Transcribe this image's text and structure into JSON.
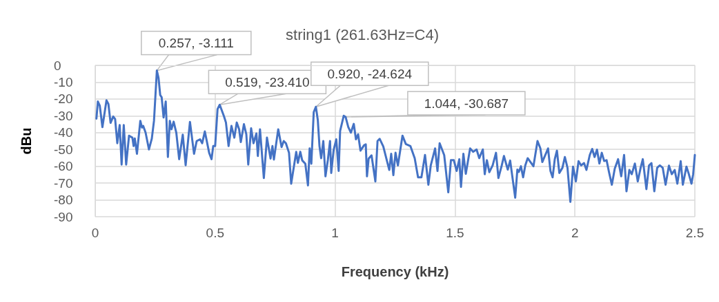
{
  "chart_data": {
    "type": "line",
    "title": "string1 (261.63Hz=C4)",
    "xlabel": "Frequency (kHz)",
    "ylabel": "dBu",
    "xlim": [
      0,
      2.5
    ],
    "xticks": [
      0,
      0.5,
      1,
      1.5,
      2,
      2.5
    ],
    "ylim": [
      -90,
      0
    ],
    "yticks": [
      -90,
      -80,
      -70,
      -60,
      -50,
      -40,
      -30,
      -20,
      -10,
      0
    ],
    "grid": true,
    "marker": "none",
    "line_style": "solid",
    "x": [
      0.005,
      0.011,
      0.019,
      0.03,
      0.047,
      0.055,
      0.064,
      0.075,
      0.083,
      0.092,
      0.102,
      0.11,
      0.119,
      0.129,
      0.141,
      0.155,
      0.16,
      0.165,
      0.174,
      0.188,
      0.195,
      0.2,
      0.21,
      0.224,
      0.236,
      0.245,
      0.257,
      0.264,
      0.271,
      0.277,
      0.285,
      0.294,
      0.303,
      0.311,
      0.318,
      0.327,
      0.338,
      0.35,
      0.365,
      0.377,
      0.395,
      0.412,
      0.423,
      0.437,
      0.446,
      0.457,
      0.475,
      0.485,
      0.492,
      0.5,
      0.51,
      0.519,
      0.537,
      0.545,
      0.556,
      0.568,
      0.58,
      0.59,
      0.6,
      0.607,
      0.62,
      0.63,
      0.638,
      0.65,
      0.66,
      0.672,
      0.678,
      0.687,
      0.703,
      0.716,
      0.731,
      0.739,
      0.745,
      0.763,
      0.777,
      0.786,
      0.795,
      0.808,
      0.817,
      0.838,
      0.845,
      0.855,
      0.863,
      0.876,
      0.887,
      0.894,
      0.901,
      0.911,
      0.92,
      0.928,
      0.935,
      0.942,
      0.951,
      0.96,
      0.97,
      0.979,
      0.984,
      0.994,
      1.005,
      1.015,
      1.021,
      1.036,
      1.044,
      1.055,
      1.066,
      1.078,
      1.087,
      1.096,
      1.106,
      1.121,
      1.128,
      1.133,
      1.14,
      1.152,
      1.168,
      1.177,
      1.186,
      1.201,
      1.226,
      1.234,
      1.243,
      1.252,
      1.262,
      1.281,
      1.295,
      1.314,
      1.332,
      1.346,
      1.36,
      1.375,
      1.389,
      1.399,
      1.417,
      1.427,
      1.436,
      1.455,
      1.472,
      1.483,
      1.495,
      1.507,
      1.518,
      1.525,
      1.535,
      1.545,
      1.563,
      1.576,
      1.59,
      1.601,
      1.616,
      1.624,
      1.633,
      1.643,
      1.657,
      1.671,
      1.681,
      1.695,
      1.704,
      1.72,
      1.73,
      1.751,
      1.76,
      1.766,
      1.775,
      1.784,
      1.793,
      1.803,
      1.827,
      1.844,
      1.856,
      1.864,
      1.888,
      1.898,
      1.907,
      1.916,
      1.925,
      1.935,
      1.948,
      1.958,
      1.969,
      1.981,
      1.992,
      2.004,
      2.015,
      2.026,
      2.038,
      2.048,
      2.062,
      2.072,
      2.082,
      2.092,
      2.102,
      2.112,
      2.122,
      2.132,
      2.142,
      2.154,
      2.166,
      2.18,
      2.193,
      2.205,
      2.215,
      2.227,
      2.237,
      2.25,
      2.262,
      2.274,
      2.283,
      2.298,
      2.309,
      2.319,
      2.331,
      2.343,
      2.354,
      2.366,
      2.378,
      2.392,
      2.404,
      2.416,
      2.427,
      2.441,
      2.45,
      2.465,
      2.475,
      2.486,
      2.493,
      2.5
    ],
    "series": [
      {
        "color": "#4472c4",
        "values": [
          -31.7,
          -21.5,
          -24,
          -36.7,
          -20.8,
          -23,
          -34.2,
          -30.4,
          -32,
          -46.3,
          -35.5,
          -59,
          -35.5,
          -59,
          -41.8,
          -43,
          -48,
          -43.5,
          -52.6,
          -33,
          -37,
          -36,
          -40,
          -50,
          -43.5,
          -33,
          -3.111,
          -7.5,
          -17.7,
          -19,
          -31,
          -21.5,
          -54.5,
          -33,
          -38,
          -33.5,
          -40,
          -55.8,
          -41.2,
          -59.4,
          -33.6,
          -52.6,
          -45,
          -44,
          -46.3,
          -39.3,
          -52,
          -55.8,
          -48,
          -48,
          -26,
          -23.41,
          -30.4,
          -34,
          -48,
          -36,
          -43,
          -34,
          -38,
          -45.6,
          -35,
          -41,
          -59,
          -37.4,
          -46.3,
          -40.5,
          -53.9,
          -38,
          -67,
          -43,
          -55.4,
          -48,
          -56,
          -38,
          -48.6,
          -45,
          -46.3,
          -52,
          -70.4,
          -51.4,
          -58,
          -51.4,
          -56.5,
          -58.5,
          -71.4,
          -49.4,
          -58.5,
          -27.8,
          -24.624,
          -32.5,
          -48,
          -55.2,
          -45,
          -66,
          -56.2,
          -45,
          -64,
          -50.4,
          -44,
          -62.8,
          -39,
          -30,
          -30.687,
          -36.7,
          -40,
          -34.8,
          -44,
          -41,
          -50.7,
          -47.5,
          -47,
          -66,
          -55.4,
          -53.5,
          -69,
          -45,
          -43.7,
          -48.2,
          -62.2,
          -52.6,
          -65.3,
          -52,
          -59.5,
          -41.8,
          -46.8,
          -48,
          -55.2,
          -66.6,
          -66.6,
          -53.3,
          -71,
          -59.5,
          -49.4,
          -62.8,
          -46.3,
          -53.4,
          -75.5,
          -56.4,
          -56.4,
          -62.8,
          -55.8,
          -72.3,
          -52.6,
          -64.5,
          -49.4,
          -51.4,
          -50,
          -55.2,
          -50,
          -64.7,
          -56.4,
          -63.5,
          -59.5,
          -52,
          -67,
          -59.5,
          -53.9,
          -62,
          -56.6,
          -78.7,
          -62,
          -63.4,
          -60,
          -66.6,
          -59.5,
          -55.2,
          -60,
          -45,
          -49.4,
          -57.5,
          -49.4,
          -62.8,
          -66.6,
          -55.8,
          -50.7,
          -64,
          -60.9,
          -54.5,
          -60.9,
          -81.2,
          -60.2,
          -69,
          -57,
          -59.5,
          -58.1,
          -62.2,
          -53.3,
          -49.7,
          -54.5,
          -50.1,
          -58.4,
          -52,
          -56.9,
          -56.4,
          -63.4,
          -71,
          -61.5,
          -55.8,
          -66,
          -53.3,
          -74.9,
          -62.2,
          -64.7,
          -58.4,
          -69,
          -60.9,
          -55.8,
          -73.6,
          -59.5,
          -58.1,
          -74.9,
          -60.9,
          -59.5,
          -60.9,
          -71,
          -59.6,
          -64.7,
          -62.2,
          -70.4,
          -57,
          -71,
          -60.2,
          -64.7,
          -70.4,
          -64.7,
          -53.3
        ]
      }
    ],
    "annotations": [
      {
        "text": "0.257, -3.111",
        "x": 0.257,
        "y": -3.111
      },
      {
        "text": "0.519, -23.410",
        "x": 0.519,
        "y": -23.41
      },
      {
        "text": "0.920, -24.624",
        "x": 0.92,
        "y": -24.624
      },
      {
        "text": "1.044, -30.687",
        "x": 1.044,
        "y": -30.687
      }
    ]
  }
}
